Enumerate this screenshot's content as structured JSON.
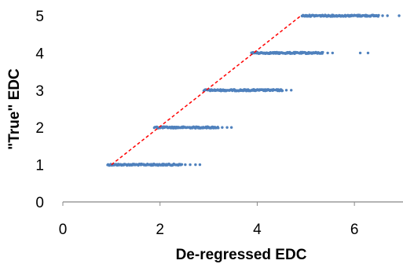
{
  "chart_data": {
    "type": "scatter",
    "xlabel": "De-regressed EDC",
    "ylabel": "\"True\" EDC",
    "xlim": [
      0,
      7
    ],
    "ylim": [
      0,
      5
    ],
    "xticks": [
      0,
      2,
      4,
      6
    ],
    "yticks": [
      0,
      1,
      2,
      3,
      4,
      5
    ],
    "grid": false,
    "colors": {
      "points": "#4f81bd",
      "reference_line": "#ff0000",
      "axis": "#888888"
    },
    "bands": [
      {
        "y": 1,
        "x_start": 0.92,
        "x_end": 2.45,
        "outliers": [
          2.52,
          2.62,
          2.73,
          2.82
        ]
      },
      {
        "y": 2,
        "x_start": 1.88,
        "x_end": 3.2,
        "outliers": [
          3.28,
          3.38,
          3.47
        ]
      },
      {
        "y": 3,
        "x_start": 2.9,
        "x_end": 4.52,
        "outliers": [
          4.6,
          4.7
        ]
      },
      {
        "y": 4,
        "x_start": 3.88,
        "x_end": 5.35,
        "outliers": [
          5.45,
          5.55,
          6.12,
          6.28
        ]
      },
      {
        "y": 5,
        "x_start": 4.92,
        "x_end": 6.5,
        "outliers": [
          6.58,
          6.68,
          6.92
        ]
      }
    ],
    "reference_line": {
      "style": "dashed",
      "points": [
        [
          1,
          1
        ],
        [
          4.9,
          5
        ]
      ]
    }
  }
}
